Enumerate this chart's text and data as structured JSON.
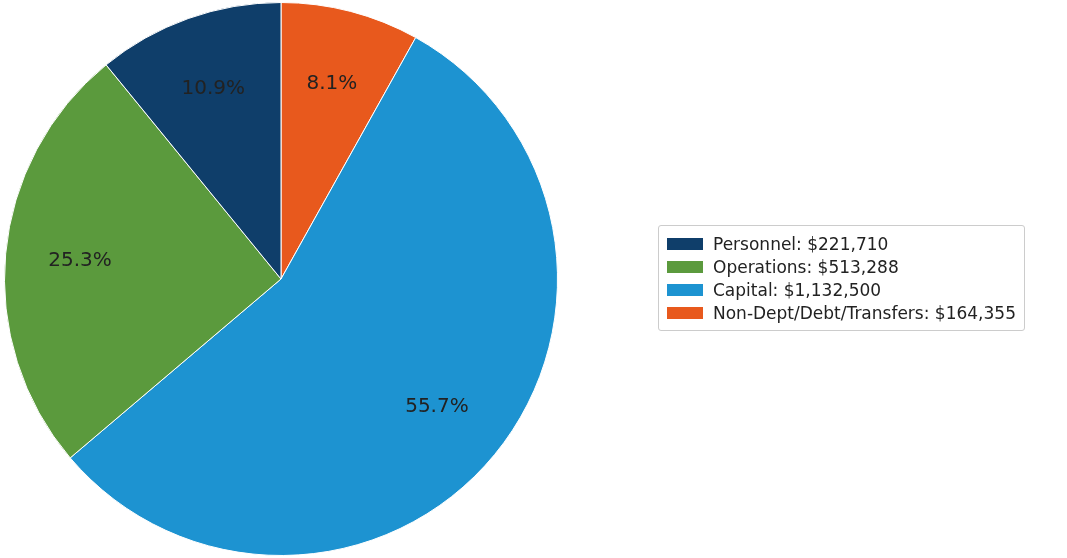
{
  "chart_data": {
    "type": "pie",
    "categories": [
      "Personnel: $221,710",
      "Operations: $513,288",
      "Capital: $1,132,500",
      "Non-Dept/Debt/Transfers: $164,355"
    ],
    "values": [
      10.9,
      25.3,
      55.7,
      8.1
    ],
    "colors": [
      "#0f3e6a",
      "#5b9a3d",
      "#1d93d1",
      "#e8591d"
    ],
    "value_labels": [
      "10.9%",
      "25.3%",
      "55.7%",
      "8.1%"
    ],
    "legend": "right"
  }
}
